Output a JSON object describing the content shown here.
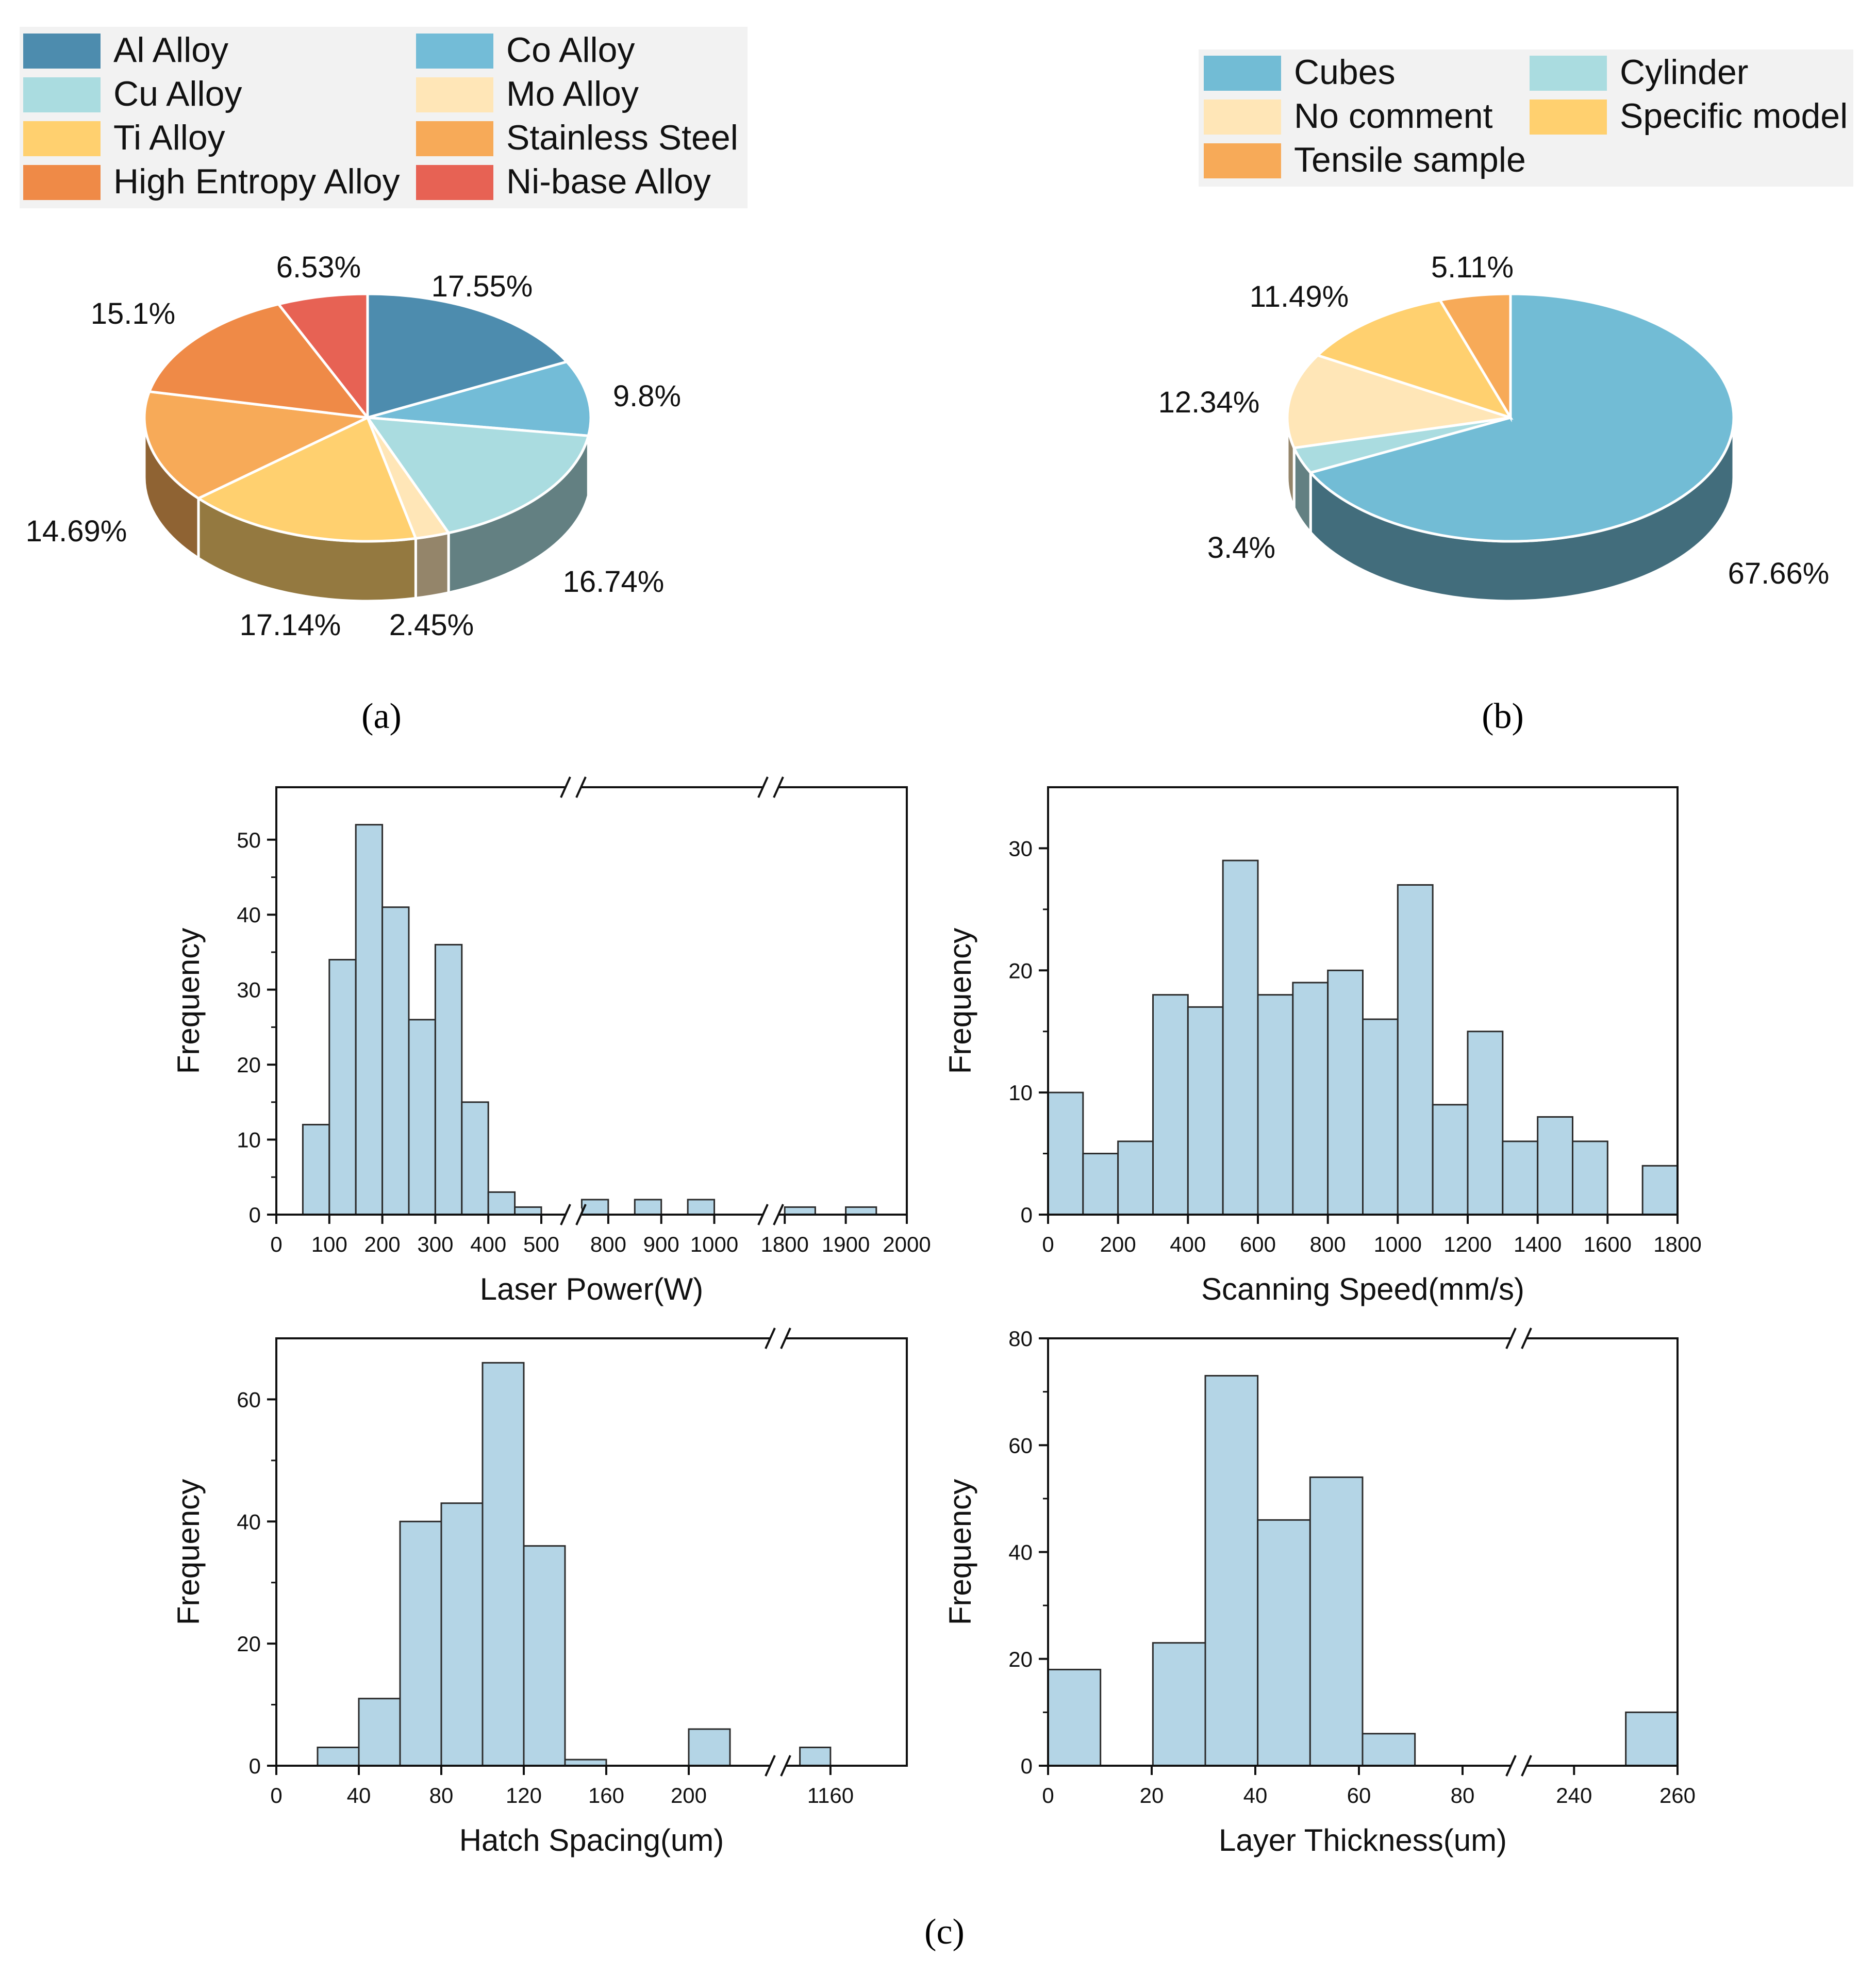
{
  "chart_data": [
    {
      "id": "a",
      "type": "pie",
      "title": "",
      "panel_label": "(a)",
      "legend_placement": "top",
      "slices": [
        {
          "name": "Al Alloy",
          "value": 17.55,
          "label": "17.55%",
          "color": "#4D8CAE"
        },
        {
          "name": "Co Alloy",
          "value": 9.8,
          "label": "9.8%",
          "color": "#73BCD7"
        },
        {
          "name": "Cu Alloy",
          "value": 16.74,
          "label": "16.74%",
          "color": "#AADCE0"
        },
        {
          "name": "Mo Alloy",
          "value": 2.45,
          "label": "2.45%",
          "color": "#FFE6B7"
        },
        {
          "name": "Ti Alloy",
          "value": 17.14,
          "label": "17.14%",
          "color": "#FFD06F"
        },
        {
          "name": "Stainless Steel",
          "value": 14.69,
          "label": "14.69%",
          "color": "#F7AA58"
        },
        {
          "name": "High Entropy Alloy",
          "value": 15.1,
          "label": "15.1%",
          "color": "#EF8A47"
        },
        {
          "name": "Ni-base Alloy",
          "value": 6.53,
          "label": "6.53%",
          "color": "#E76254"
        }
      ]
    },
    {
      "id": "b",
      "type": "pie",
      "title": "",
      "panel_label": "(b)",
      "legend_placement": "top-right",
      "slices": [
        {
          "name": "Cubes",
          "value": 67.66,
          "label": "67.66%",
          "color": "#72BCD5"
        },
        {
          "name": "Cylinder",
          "value": 3.4,
          "label": "3.4%",
          "color": "#AADCE0"
        },
        {
          "name": "No comment",
          "value": 12.34,
          "label": "12.34%",
          "color": "#FFE6B7"
        },
        {
          "name": "Specific model",
          "value": 11.49,
          "label": "11.49%",
          "color": "#FFD06F"
        },
        {
          "name": "Tensile sample",
          "value": 5.11,
          "label": "5.11%",
          "color": "#F7AA58"
        }
      ]
    },
    {
      "id": "c1",
      "type": "bar",
      "title": "",
      "xlabel": "Laser Power(W)",
      "ylabel": "Frequency",
      "ylim": [
        0,
        57
      ],
      "yticks": [
        "0",
        "10",
        "20",
        "30",
        "40",
        "50"
      ],
      "axis_break": "two breaks (≈500–800 and ≈1000–1800)",
      "xticks": [
        "0",
        "100",
        "200",
        "300",
        "400",
        "500",
        "800",
        "900",
        "1000",
        "1800",
        "1900",
        "2000"
      ],
      "bins": [
        {
          "range": "50-100",
          "value": 12
        },
        {
          "range": "100-150",
          "value": 34
        },
        {
          "range": "150-200",
          "value": 52
        },
        {
          "range": "200-250",
          "value": 41
        },
        {
          "range": "250-300",
          "value": 26
        },
        {
          "range": "300-350",
          "value": 36
        },
        {
          "range": "350-400",
          "value": 15
        },
        {
          "range": "400-450",
          "value": 3
        },
        {
          "range": "450-500",
          "value": 1
        },
        {
          "range": "800-850",
          "value": 2
        },
        {
          "range": "900-950",
          "value": 2
        },
        {
          "range": "1000-1050",
          "value": 2
        },
        {
          "range": "1800-1850",
          "value": 1
        },
        {
          "range": "1900-1950",
          "value": 1
        }
      ]
    },
    {
      "id": "c2",
      "type": "bar",
      "title": "",
      "xlabel": "Scanning Speed(mm/s)",
      "ylabel": "Frequency",
      "ylim": [
        0,
        35
      ],
      "yticks": [
        "0",
        "10",
        "20",
        "30"
      ],
      "xticks": [
        "0",
        "200",
        "400",
        "600",
        "800",
        "1000",
        "1200",
        "1400",
        "1600",
        "1800"
      ],
      "bins": [
        {
          "range": "0-100",
          "value": 10
        },
        {
          "range": "100-200",
          "value": 5
        },
        {
          "range": "200-300",
          "value": 6
        },
        {
          "range": "300-400",
          "value": 18
        },
        {
          "range": "400-500",
          "value": 17
        },
        {
          "range": "500-600",
          "value": 29
        },
        {
          "range": "600-700",
          "value": 18
        },
        {
          "range": "700-800",
          "value": 19
        },
        {
          "range": "800-900",
          "value": 20
        },
        {
          "range": "900-1000",
          "value": 16
        },
        {
          "range": "1000-1100",
          "value": 27
        },
        {
          "range": "1100-1200",
          "value": 9
        },
        {
          "range": "1200-1300",
          "value": 15
        },
        {
          "range": "1300-1400",
          "value": 6
        },
        {
          "range": "1400-1500",
          "value": 8
        },
        {
          "range": "1500-1600",
          "value": 6
        },
        {
          "range": "1600-1700",
          "value": 0
        },
        {
          "range": "1700-1800",
          "value": 4
        }
      ]
    },
    {
      "id": "c3",
      "type": "bar",
      "title": "",
      "xlabel": "Hatch Spacing(um)",
      "ylabel": "Frequency",
      "ylim": [
        0,
        70
      ],
      "yticks": [
        "0",
        "20",
        "40",
        "60"
      ],
      "axis_break": "one break (≈220–1140)",
      "xticks": [
        "0",
        "40",
        "80",
        "120",
        "160",
        "200",
        "1160"
      ],
      "bins": [
        {
          "range": "20-40",
          "value": 3
        },
        {
          "range": "40-60",
          "value": 11
        },
        {
          "range": "60-80",
          "value": 40
        },
        {
          "range": "80-100",
          "value": 43
        },
        {
          "range": "100-120",
          "value": 66
        },
        {
          "range": "120-140",
          "value": 36
        },
        {
          "range": "140-160",
          "value": 1
        },
        {
          "range": "200-220",
          "value": 6
        },
        {
          "range": "1140-1160",
          "value": 3
        }
      ]
    },
    {
      "id": "c4",
      "type": "bar",
      "title": "",
      "xlabel": "Layer Thickness(um)",
      "ylabel": "Frequency",
      "ylim": [
        0,
        80
      ],
      "yticks": [
        "0",
        "20",
        "40",
        "60",
        "80"
      ],
      "axis_break": "one break (≈90–230)",
      "xticks": [
        "0",
        "20",
        "40",
        "60",
        "80",
        "240",
        "260"
      ],
      "bins": [
        {
          "range": "0-10",
          "value": 18
        },
        {
          "range": "20-30",
          "value": 23
        },
        {
          "range": "30-40",
          "value": 73
        },
        {
          "range": "40-50",
          "value": 46
        },
        {
          "range": "50-60",
          "value": 54
        },
        {
          "range": "60-70",
          "value": 6
        },
        {
          "range": "250-260",
          "value": 10
        }
      ]
    }
  ],
  "panel_c_label": "(c)",
  "bar_color": "#B4D5E6",
  "bar_edge_color": "#2B2B2B"
}
